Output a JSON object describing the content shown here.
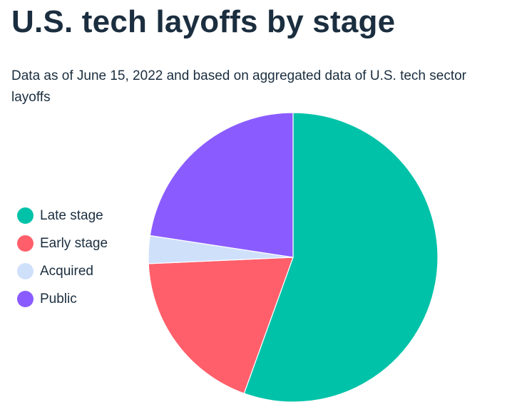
{
  "title": "U.S. tech layoffs by stage",
  "subtitle": "Data as of June 15, 2022 and based on aggregated data of U.S. tech sector layoffs",
  "chart_data": {
    "type": "pie",
    "title": "U.S. tech layoffs by stage",
    "subtitle": "Data as of June 15, 2022 and based on aggregated data of U.S. tech sector layoffs",
    "legend_position": "left",
    "start_angle": "top",
    "direction": "clockwise",
    "slices": [
      {
        "label": "Late stage",
        "value": 55.5,
        "color": "#00c2a8"
      },
      {
        "label": "Early stage",
        "value": 18.8,
        "color": "#ff5f6a"
      },
      {
        "label": "Acquired",
        "value": 3.1,
        "color": "#cfe0fb"
      },
      {
        "label": "Public",
        "value": 22.6,
        "color": "#8a5cff"
      }
    ]
  }
}
